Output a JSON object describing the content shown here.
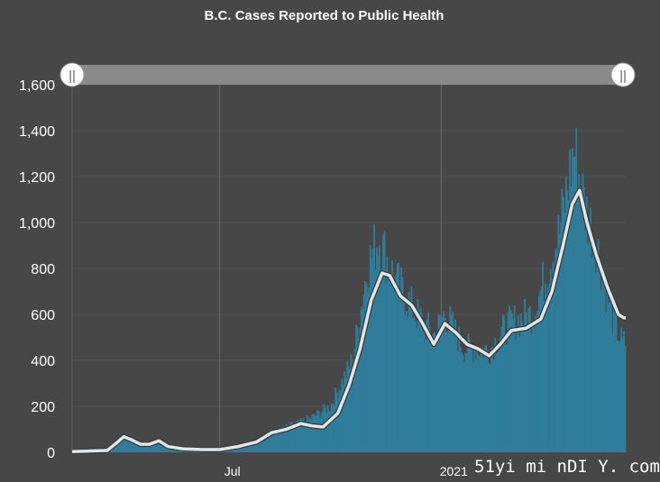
{
  "chart_data": {
    "type": "bar",
    "title": "B.C. Cases Reported to Public Health",
    "xlabel": "",
    "ylabel": "",
    "ylim": [
      0,
      1600
    ],
    "yticks": [
      "0",
      "200",
      "400",
      "600",
      "800",
      "1,000",
      "1,200",
      "1,400",
      "1,600"
    ],
    "xticks": [
      {
        "label": "Jul",
        "month_index": 4
      },
      {
        "label": "2021",
        "month_index": 10
      }
    ],
    "grid": true,
    "legend": "none",
    "time_range": [
      "2020-03",
      "2021-05"
    ],
    "series": [
      {
        "kind": "daily-bars",
        "color": "#2e7d9a",
        "monthly_points": [
          [
            0,
            5
          ],
          [
            0.5,
            5
          ],
          [
            0.95,
            10
          ],
          [
            1.3,
            65
          ],
          [
            1.5,
            55
          ],
          [
            1.8,
            40
          ],
          [
            2.1,
            30
          ],
          [
            2.4,
            45
          ],
          [
            2.7,
            25
          ],
          [
            3.0,
            15
          ],
          [
            3.5,
            10
          ],
          [
            4.0,
            12
          ],
          [
            4.5,
            20
          ],
          [
            5.0,
            40
          ],
          [
            5.4,
            80
          ],
          [
            6.0,
            120
          ],
          [
            6.4,
            140
          ],
          [
            7.0,
            200
          ],
          [
            7.6,
            400
          ],
          [
            8.0,
            800
          ],
          [
            8.3,
            930
          ],
          [
            8.7,
            760
          ],
          [
            9.3,
            600
          ],
          [
            9.8,
            500
          ],
          [
            10.1,
            600
          ],
          [
            10.6,
            450
          ],
          [
            11.3,
            440
          ],
          [
            11.8,
            550
          ],
          [
            12.5,
            600
          ],
          [
            13.2,
            950
          ],
          [
            13.6,
            1310
          ],
          [
            13.9,
            1050
          ],
          [
            14.2,
            900
          ],
          [
            14.6,
            600
          ],
          [
            14.9,
            470
          ]
        ]
      },
      {
        "kind": "7-day-average",
        "color": "#dfe7ea",
        "monthly_points": [
          [
            0,
            3
          ],
          [
            0.95,
            8
          ],
          [
            1.2,
            40
          ],
          [
            1.4,
            68
          ],
          [
            1.6,
            55
          ],
          [
            1.85,
            35
          ],
          [
            2.1,
            35
          ],
          [
            2.35,
            50
          ],
          [
            2.6,
            25
          ],
          [
            3.0,
            15
          ],
          [
            3.5,
            12
          ],
          [
            4.0,
            12
          ],
          [
            4.5,
            25
          ],
          [
            5.0,
            45
          ],
          [
            5.4,
            85
          ],
          [
            5.8,
            100
          ],
          [
            6.2,
            125
          ],
          [
            6.5,
            115
          ],
          [
            6.8,
            110
          ],
          [
            7.2,
            170
          ],
          [
            7.5,
            290
          ],
          [
            7.8,
            450
          ],
          [
            8.1,
            660
          ],
          [
            8.4,
            780
          ],
          [
            8.6,
            770
          ],
          [
            8.9,
            680
          ],
          [
            9.2,
            640
          ],
          [
            9.5,
            560
          ],
          [
            9.8,
            470
          ],
          [
            10.1,
            560
          ],
          [
            10.4,
            520
          ],
          [
            10.7,
            470
          ],
          [
            11.0,
            450
          ],
          [
            11.3,
            420
          ],
          [
            11.6,
            470
          ],
          [
            11.9,
            530
          ],
          [
            12.3,
            540
          ],
          [
            12.7,
            580
          ],
          [
            13.0,
            700
          ],
          [
            13.3,
            900
          ],
          [
            13.55,
            1080
          ],
          [
            13.75,
            1140
          ],
          [
            13.95,
            1000
          ],
          [
            14.2,
            860
          ],
          [
            14.5,
            720
          ],
          [
            14.8,
            600
          ],
          [
            14.95,
            585
          ]
        ]
      }
    ]
  },
  "range_slider": {
    "handle_glyph": "||"
  },
  "watermark": "51yi mi nDI Y. com"
}
